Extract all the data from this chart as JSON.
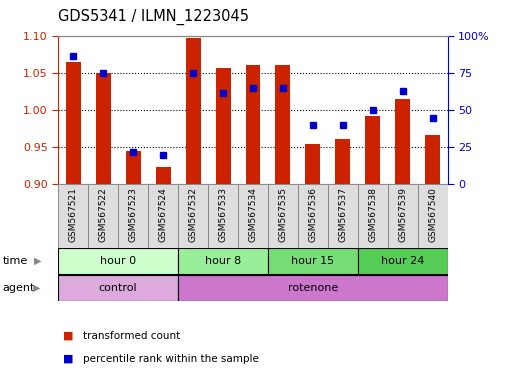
{
  "title": "GDS5341 / ILMN_1223045",
  "samples": [
    "GSM567521",
    "GSM567522",
    "GSM567523",
    "GSM567524",
    "GSM567532",
    "GSM567533",
    "GSM567534",
    "GSM567535",
    "GSM567536",
    "GSM567537",
    "GSM567538",
    "GSM567539",
    "GSM567540"
  ],
  "transformed_count": [
    1.065,
    1.05,
    0.945,
    0.924,
    1.098,
    1.057,
    1.062,
    1.061,
    0.955,
    0.961,
    0.993,
    1.015,
    0.967
  ],
  "percentile_rank": [
    87,
    75,
    22,
    20,
    75,
    62,
    65,
    65,
    40,
    40,
    50,
    63,
    45
  ],
  "ylim_left": [
    0.9,
    1.1
  ],
  "ylim_right": [
    0,
    100
  ],
  "bar_color": "#cc2200",
  "dot_color": "#0000cc",
  "grid_color": "#000000",
  "tick_color_left": "#cc2200",
  "tick_color_right": "#0000cc",
  "time_groups": [
    {
      "label": "hour 0",
      "start": 0,
      "end": 4,
      "color": "#ccffcc"
    },
    {
      "label": "hour 8",
      "start": 4,
      "end": 7,
      "color": "#99ee99"
    },
    {
      "label": "hour 15",
      "start": 7,
      "end": 10,
      "color": "#77dd77"
    },
    {
      "label": "hour 24",
      "start": 10,
      "end": 13,
      "color": "#55cc55"
    }
  ],
  "agent_groups": [
    {
      "label": "control",
      "start": 0,
      "end": 4,
      "color": "#ddaadd"
    },
    {
      "label": "rotenone",
      "start": 4,
      "end": 13,
      "color": "#cc77cc"
    }
  ],
  "legend_items": [
    {
      "color": "#cc2200",
      "label": "transformed count"
    },
    {
      "color": "#0000cc",
      "label": "percentile rank within the sample"
    }
  ],
  "bar_width": 0.5,
  "background_color": "#ffffff",
  "plot_bg_color": "#ffffff",
  "spine_color": "#888888",
  "label_box_color": "#dddddd",
  "label_box_edge": "#888888"
}
